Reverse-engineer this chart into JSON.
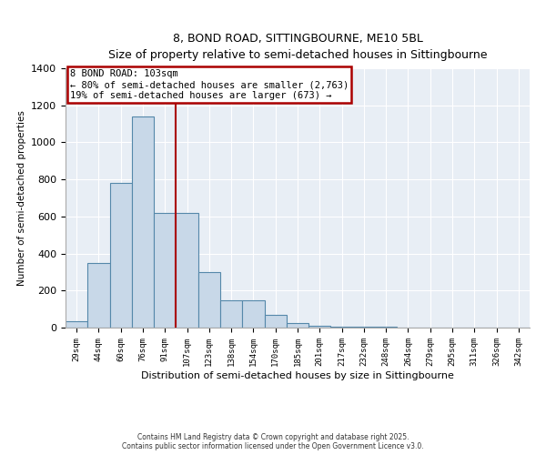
{
  "title1": "8, BOND ROAD, SITTINGBOURNE, ME10 5BL",
  "title2": "Size of property relative to semi-detached houses in Sittingbourne",
  "xlabel": "Distribution of semi-detached houses by size in Sittingbourne",
  "ylabel": "Number of semi-detached properties",
  "bar_labels": [
    "29sqm",
    "44sqm",
    "60sqm",
    "76sqm",
    "91sqm",
    "107sqm",
    "123sqm",
    "138sqm",
    "154sqm",
    "170sqm",
    "185sqm",
    "201sqm",
    "217sqm",
    "232sqm",
    "248sqm",
    "264sqm",
    "279sqm",
    "295sqm",
    "311sqm",
    "326sqm",
    "342sqm"
  ],
  "bar_values": [
    35,
    350,
    780,
    1140,
    620,
    620,
    300,
    145,
    145,
    70,
    25,
    10,
    5,
    5,
    5,
    0,
    0,
    0,
    0,
    0,
    0
  ],
  "bar_color": "#c8d8e8",
  "bar_edge_color": "#5588aa",
  "vline_x": 4.5,
  "vline_color": "#aa0000",
  "annotation_title": "8 BOND ROAD: 103sqm",
  "annotation_line1": "← 80% of semi-detached houses are smaller (2,763)",
  "annotation_line2": "19% of semi-detached houses are larger (673) →",
  "annotation_box_color": "#aa0000",
  "ylim": [
    0,
    1400
  ],
  "yticks": [
    0,
    200,
    400,
    600,
    800,
    1000,
    1200,
    1400
  ],
  "bg_color": "#e8eef5",
  "footnote1": "Contains HM Land Registry data © Crown copyright and database right 2025.",
  "footnote2": "Contains public sector information licensed under the Open Government Licence v3.0."
}
